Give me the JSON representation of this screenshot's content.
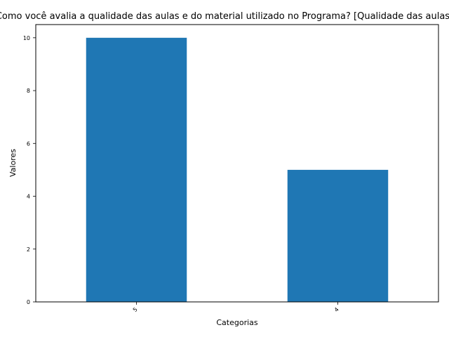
{
  "chart_data": {
    "type": "bar",
    "title": "Como você avalia a qualidade das aulas e do material utilizado no Programa? [Qualidade das aulas]",
    "xlabel": "Categorias",
    "ylabel": "Valores",
    "categories": [
      "5",
      "4"
    ],
    "values": [
      10,
      5
    ],
    "ylim": [
      0,
      10.5
    ],
    "yticks": [
      0,
      2,
      4,
      6,
      8,
      10
    ],
    "grid": false,
    "legend": "none",
    "bar_color": "#1f77b4"
  }
}
